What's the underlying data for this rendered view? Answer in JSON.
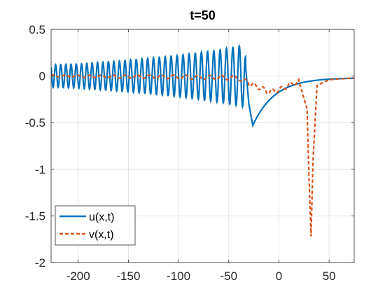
{
  "chart_data": {
    "type": "line",
    "title": "t=50",
    "xlabel": "",
    "ylabel": "",
    "xlim": [
      -227,
      75
    ],
    "ylim": [
      -2,
      0.5
    ],
    "grid": true,
    "legend_position": "bottom-left",
    "x_ticks": [
      -200,
      -150,
      -100,
      -50,
      0,
      50
    ],
    "x_tick_labels": [
      "-200",
      "-150",
      "-100",
      "-50",
      "0",
      "50"
    ],
    "y_ticks": [
      0.5,
      0,
      -0.5,
      -1,
      -1.5,
      -2
    ],
    "y_tick_labels": [
      "0.5",
      "0",
      "-0.5",
      "-1",
      "-1.5",
      "-2"
    ],
    "series": [
      {
        "name": "u(x,t)",
        "color": "#0072BD",
        "style": "solid",
        "description_points": {
          "x": [
            -227,
            -200,
            -150,
            -100,
            -60,
            -35,
            -30,
            -26,
            -20,
            -10,
            0,
            10,
            25,
            50,
            75
          ],
          "envelope_amplitude": [
            0.12,
            0.13,
            0.17,
            0.22,
            0.28,
            0.33,
            0.0,
            0.0,
            0.0,
            0.0,
            0.0,
            0.0,
            0.0,
            0.0,
            0.0
          ],
          "y": [
            0.0,
            0.0,
            0.0,
            0.0,
            0.0,
            0.33,
            -0.3,
            -0.53,
            -0.48,
            -0.33,
            -0.2,
            -0.12,
            -0.07,
            -0.035,
            -0.02
          ]
        }
      },
      {
        "name": "v(x,t)",
        "color": "#D95319",
        "style": "dashed",
        "description_points": {
          "x": [
            -227,
            -100,
            -40,
            -30,
            -20,
            -10,
            0,
            10,
            20,
            28,
            30,
            32,
            34,
            38,
            50,
            75
          ],
          "y": [
            0.0,
            -0.01,
            -0.02,
            -0.08,
            -0.12,
            -0.17,
            -0.15,
            -0.1,
            -0.06,
            -0.35,
            -1.1,
            -1.72,
            -0.9,
            -0.1,
            -0.04,
            -0.02
          ]
        }
      }
    ]
  },
  "legend": {
    "entries": [
      "u(x,t)",
      "v(x,t)"
    ]
  }
}
